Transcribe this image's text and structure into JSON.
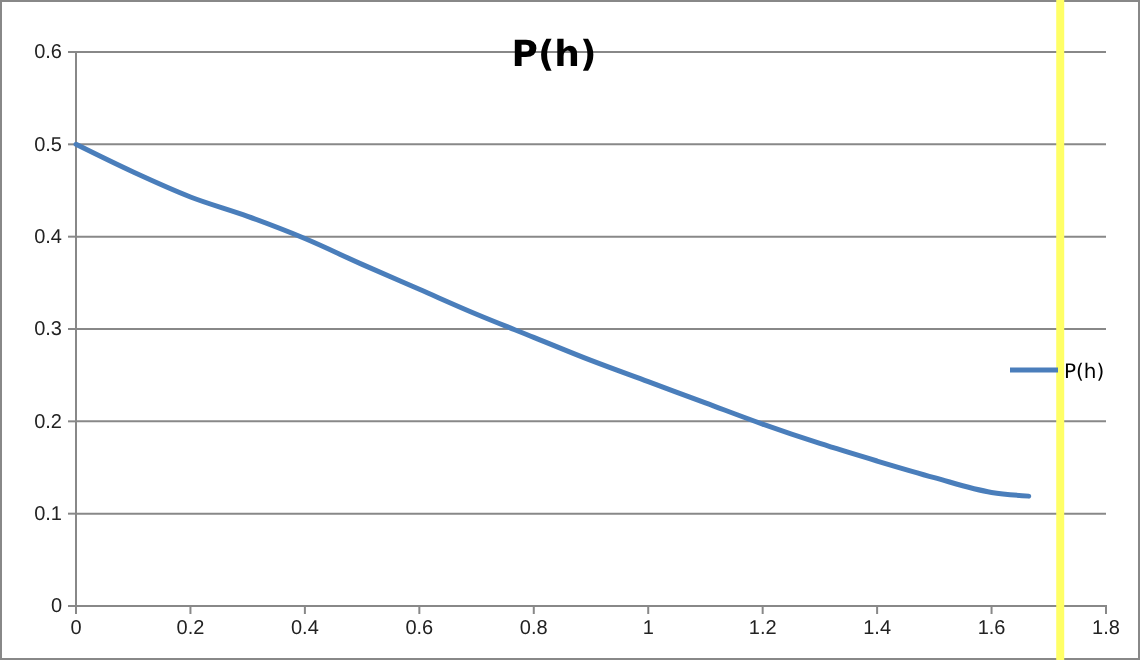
{
  "chart_data": {
    "type": "line",
    "title": "P(h)",
    "x": [
      0,
      0.1,
      0.2,
      0.3,
      0.4,
      0.5,
      0.6,
      0.7,
      0.8,
      0.9,
      1.0,
      1.1,
      1.2,
      1.3,
      1.4,
      1.5,
      1.6,
      1.665
    ],
    "series": [
      {
        "name": "P(h)",
        "color": "#4a7ebb",
        "values": [
          0.5,
          0.47,
          0.443,
          0.422,
          0.398,
          0.37,
          0.343,
          0.316,
          0.291,
          0.266,
          0.243,
          0.22,
          0.197,
          0.176,
          0.157,
          0.139,
          0.123,
          0.119
        ]
      }
    ],
    "xlim": [
      0,
      1.8
    ],
    "xticks": [
      0,
      0.2,
      0.4,
      0.6,
      0.8,
      1,
      1.2,
      1.4,
      1.6,
      1.8
    ],
    "ylim": [
      0,
      0.6
    ],
    "yticks": [
      0,
      0.1,
      0.2,
      0.3,
      0.4,
      0.5,
      0.6
    ],
    "grid": "y",
    "legend": "right",
    "marker": "none",
    "line_style": "solid",
    "ref_lines": [
      {
        "axis": "x",
        "value": 1.72,
        "label": null,
        "color": "#ffff66"
      }
    ]
  }
}
